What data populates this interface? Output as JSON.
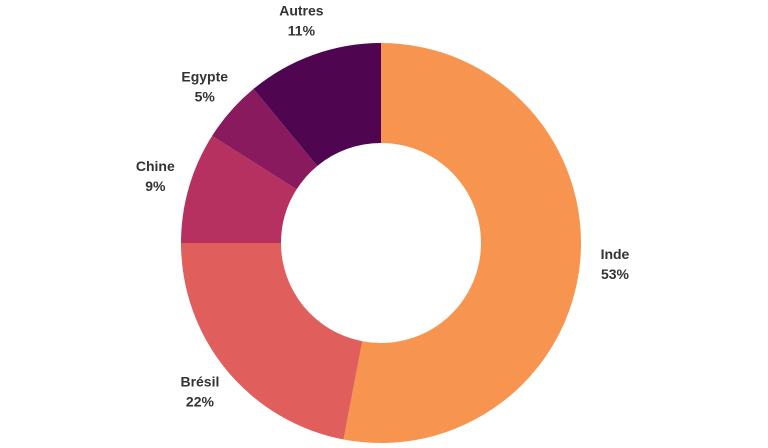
{
  "chart_data": {
    "type": "donut",
    "categories": [
      "Inde",
      "Brésil",
      "Chine",
      "Egypte",
      "Autres"
    ],
    "values": [
      53,
      22,
      9,
      5,
      11
    ],
    "value_labels": [
      "53%",
      "22%",
      "9%",
      "5%",
      "11%"
    ],
    "colors": [
      "#f79550",
      "#e05e5c",
      "#b63060",
      "#8a1a5e",
      "#4f0550"
    ]
  }
}
